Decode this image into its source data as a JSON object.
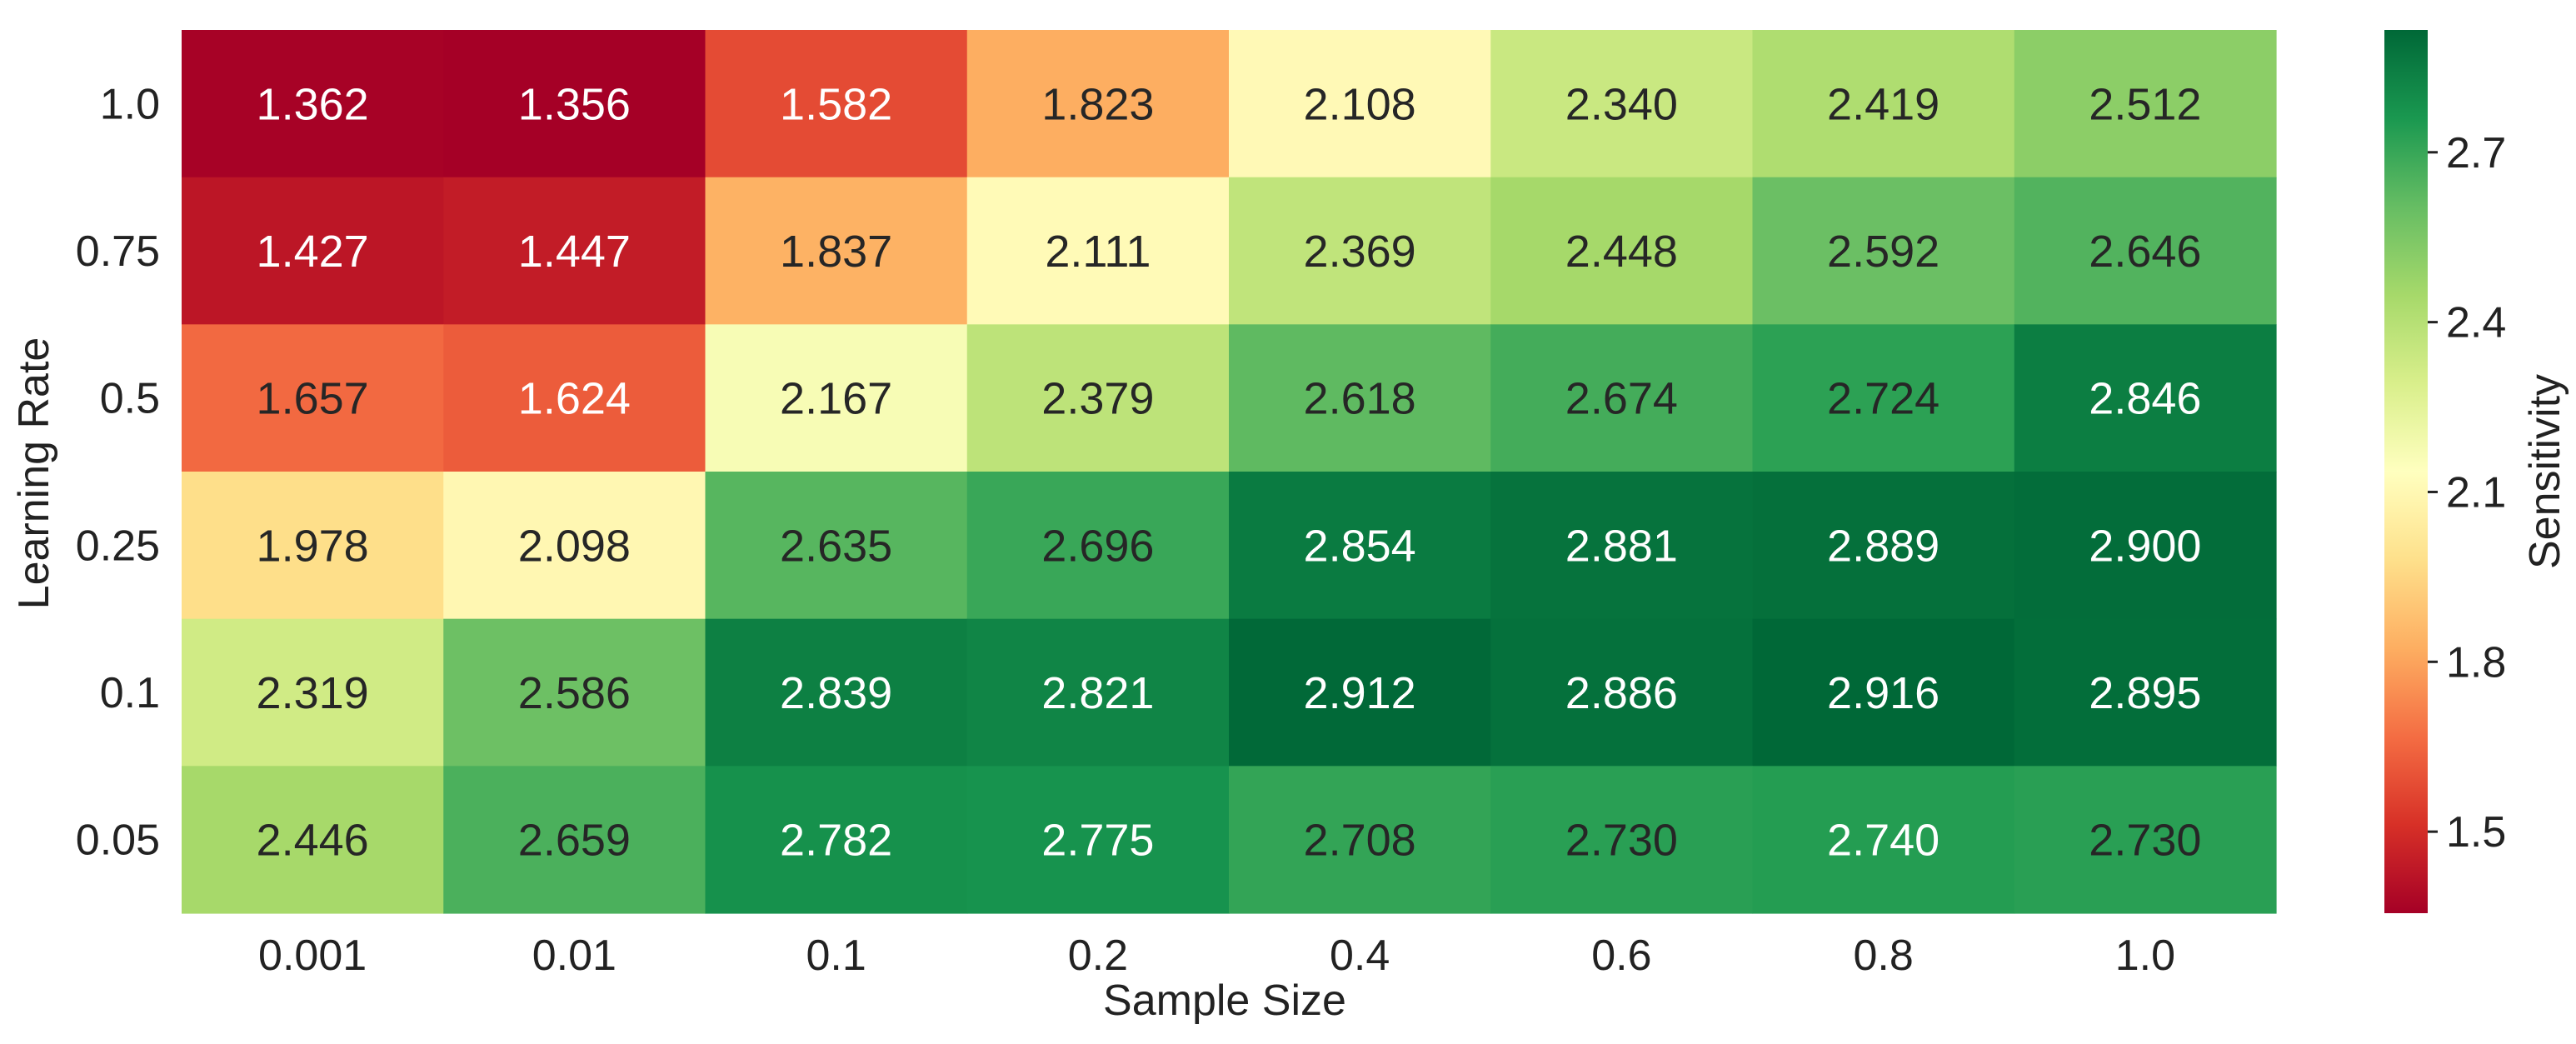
{
  "chart_data": {
    "type": "heatmap",
    "colormap": "RdYlGn",
    "xlabel": "Sample Size",
    "ylabel": "Learning Rate",
    "x_categories": [
      "0.001",
      "0.01",
      "0.1",
      "0.2",
      "0.4",
      "0.6",
      "0.8",
      "1.0"
    ],
    "y_categories": [
      "1.0",
      "0.75",
      "0.5",
      "0.25",
      "0.1",
      "0.05"
    ],
    "values": [
      [
        1.362,
        1.356,
        1.582,
        1.823,
        2.108,
        2.34,
        2.419,
        2.512
      ],
      [
        1.427,
        1.447,
        1.837,
        2.111,
        2.369,
        2.448,
        2.592,
        2.646
      ],
      [
        1.657,
        1.624,
        2.167,
        2.379,
        2.618,
        2.674,
        2.724,
        2.846
      ],
      [
        1.978,
        2.098,
        2.635,
        2.696,
        2.854,
        2.881,
        2.889,
        2.9
      ],
      [
        2.319,
        2.586,
        2.839,
        2.821,
        2.912,
        2.886,
        2.916,
        2.895
      ],
      [
        2.446,
        2.659,
        2.782,
        2.775,
        2.708,
        2.73,
        2.74,
        2.73
      ]
    ],
    "value_labels": [
      [
        "1.362",
        "1.356",
        "1.582",
        "1.823",
        "2.108",
        "2.340",
        "2.419",
        "2.512"
      ],
      [
        "1.427",
        "1.447",
        "1.837",
        "2.111",
        "2.369",
        "2.448",
        "2.592",
        "2.646"
      ],
      [
        "1.657",
        "1.624",
        "2.167",
        "2.379",
        "2.618",
        "2.674",
        "2.724",
        "2.846"
      ],
      [
        "1.978",
        "2.098",
        "2.635",
        "2.696",
        "2.854",
        "2.881",
        "2.889",
        "2.900"
      ],
      [
        "2.319",
        "2.586",
        "2.839",
        "2.821",
        "2.912",
        "2.886",
        "2.916",
        "2.895"
      ],
      [
        "2.446",
        "2.659",
        "2.782",
        "2.775",
        "2.708",
        "2.730",
        "2.740",
        "2.730"
      ]
    ],
    "colorbar": {
      "label": "Sensitivity",
      "vmin": 1.356,
      "vmax": 2.916,
      "ticks": [
        1.5,
        1.8,
        2.1,
        2.4,
        2.7
      ],
      "tick_labels": [
        "1.5",
        "1.8",
        "2.1",
        "2.4",
        "2.7"
      ]
    },
    "grid": false,
    "legend": "colorbar-right"
  }
}
